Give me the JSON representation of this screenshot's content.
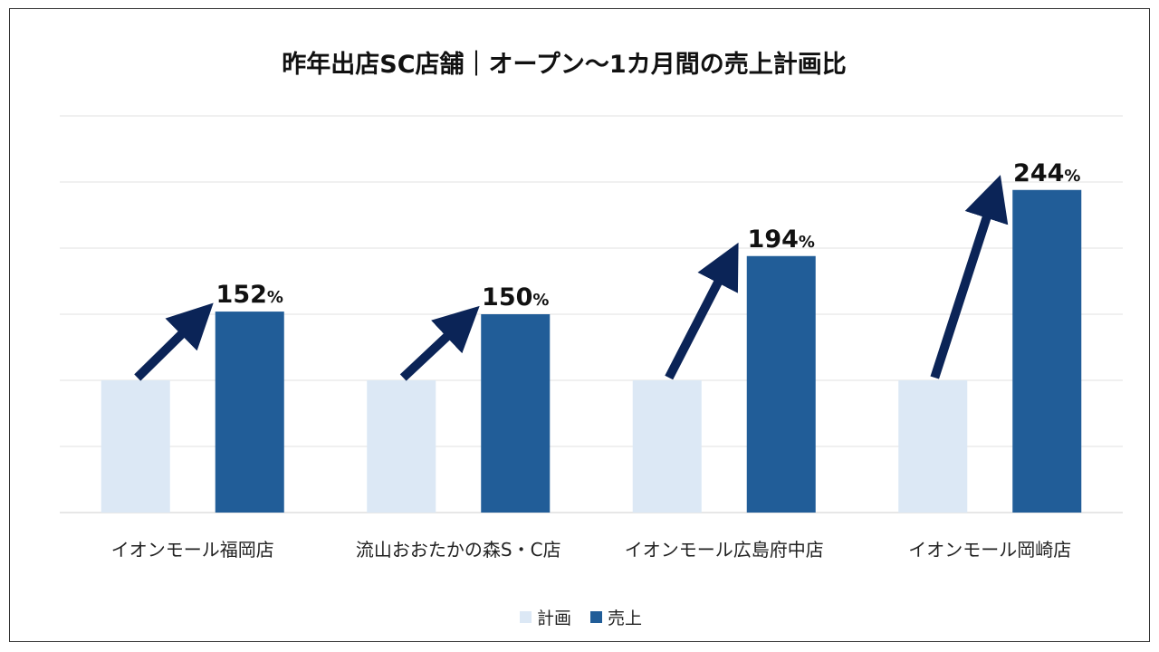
{
  "chart_data": {
    "type": "bar",
    "title": "昨年出店SC店舗｜オープン～1カ月間の売上計画比",
    "categories": [
      "イオンモール福岡店",
      "流山おおたかの森S・C店",
      "イオンモール広島府中店",
      "イオンモール岡崎店"
    ],
    "series": [
      {
        "name": "計画",
        "values": [
          100,
          100,
          100,
          100
        ],
        "color": "#DCE8F5"
      },
      {
        "name": "売上",
        "values": [
          152,
          150,
          194,
          244
        ],
        "color": "#215D98"
      }
    ],
    "data_labels": [
      {
        "value": "152",
        "unit": "%"
      },
      {
        "value": "150",
        "unit": "%"
      },
      {
        "value": "194",
        "unit": "%"
      },
      {
        "value": "244",
        "unit": "%"
      }
    ],
    "ylim": [
      0,
      300
    ],
    "gridlines": true,
    "legend": "bottom-center",
    "arrow_color": "#0B2457"
  }
}
